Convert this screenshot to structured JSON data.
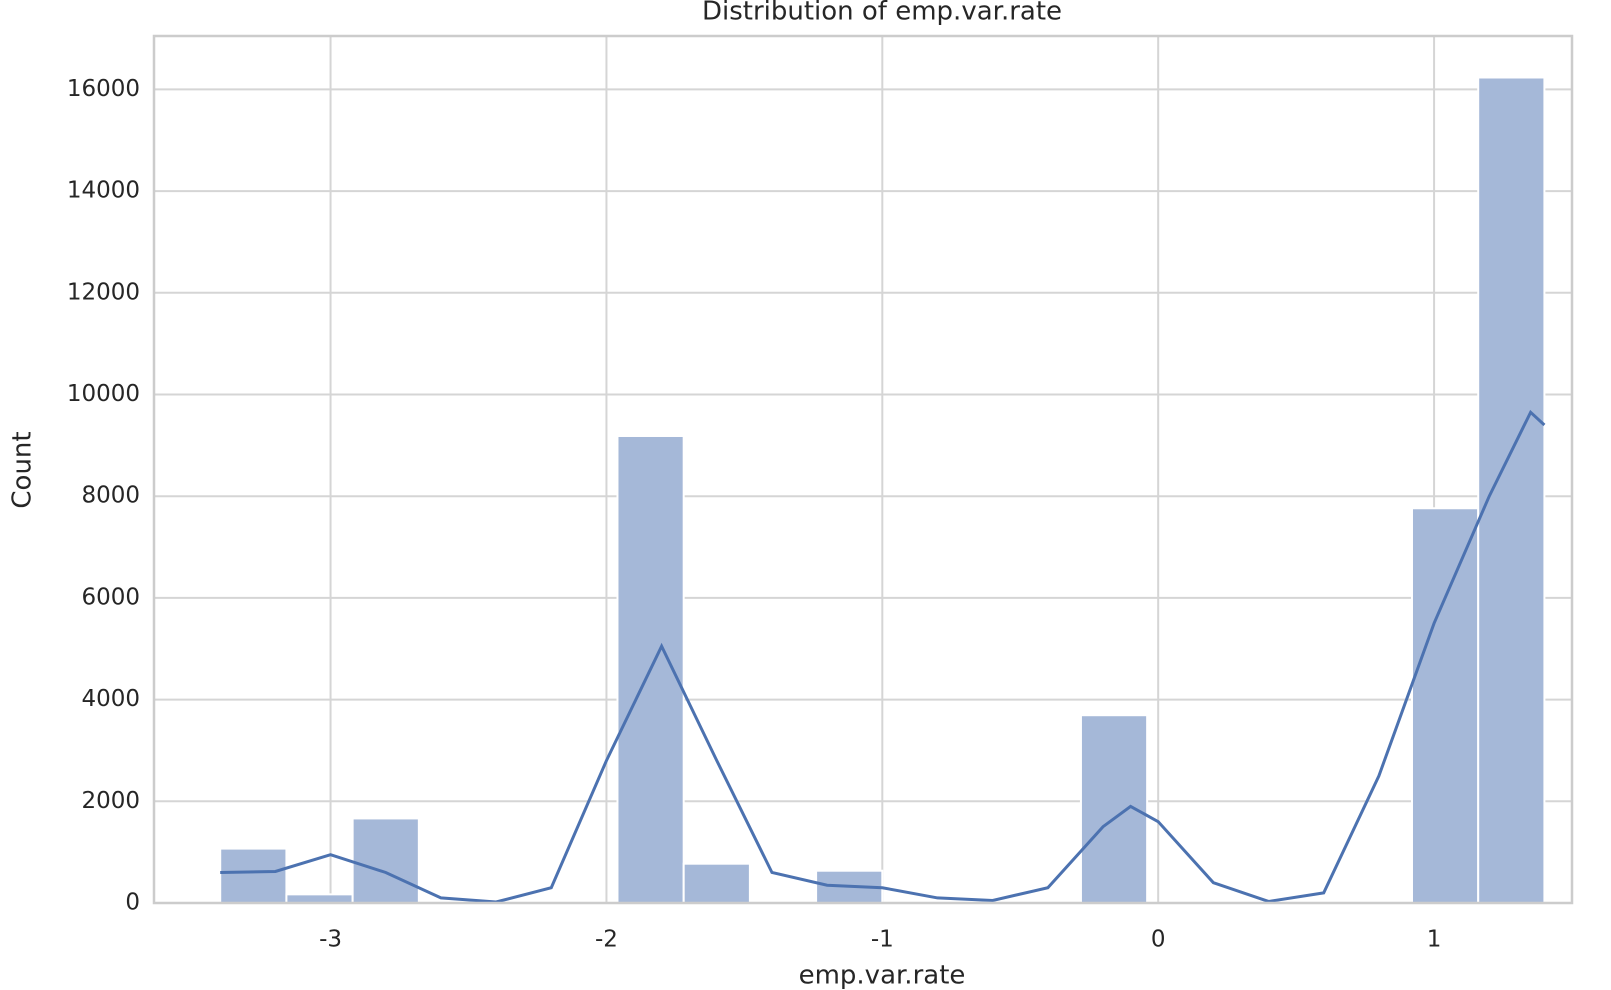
{
  "chart_data": {
    "type": "histogram",
    "title": "Distribution of emp.var.rate",
    "xlabel": "emp.var.rate",
    "ylabel": "Count",
    "bins": [
      -3.4,
      -3.16,
      -2.92,
      -2.68,
      -2.44,
      -2.2,
      -1.96,
      -1.72,
      -1.48,
      -1.24,
      -1.0,
      -0.76,
      -0.52,
      -0.28,
      -0.04,
      0.2,
      0.44,
      0.68,
      0.92,
      1.16,
      1.4
    ],
    "values": [
      1070,
      170,
      1663,
      0,
      0,
      0,
      9184,
      773,
      0,
      635,
      0,
      0,
      0,
      3693,
      0,
      0,
      0,
      0,
      7763,
      16234
    ],
    "color": "#a5b8d8",
    "kde": {
      "color": "#4c72b0",
      "x": [
        -3.4,
        -3.2,
        -3.0,
        -2.8,
        -2.6,
        -2.4,
        -2.2,
        -2.0,
        -1.8,
        -1.6,
        -1.4,
        -1.2,
        -1.0,
        -0.8,
        -0.6,
        -0.4,
        -0.2,
        -0.1,
        0.0,
        0.2,
        0.4,
        0.6,
        0.8,
        1.0,
        1.2,
        1.35,
        1.4
      ],
      "values": [
        600,
        620,
        950,
        600,
        100,
        20,
        300,
        2800,
        5050,
        2800,
        600,
        350,
        300,
        100,
        50,
        300,
        1500,
        1900,
        1600,
        400,
        30,
        200,
        2500,
        5500,
        8000,
        9650,
        9400
      ]
    },
    "xlim": [
      -3.64,
      1.5
    ],
    "ylim": [
      0,
      17050
    ],
    "xticks": [
      -3,
      -2,
      -1,
      0,
      1
    ],
    "yticks": [
      0,
      2000,
      4000,
      6000,
      8000,
      10000,
      12000,
      14000,
      16000
    ],
    "grid": true
  }
}
